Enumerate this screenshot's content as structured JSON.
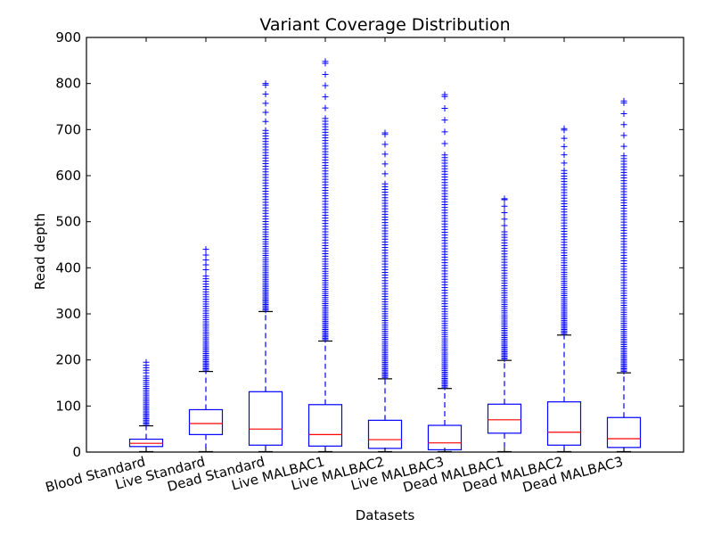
{
  "chart_data": {
    "type": "boxplot",
    "title": "Variant Coverage Distribution",
    "xlabel": "Datasets",
    "ylabel": "Read depth",
    "ylim": [
      0,
      900
    ],
    "yticks": [
      0,
      100,
      200,
      300,
      400,
      500,
      600,
      700,
      800,
      900
    ],
    "grid": false,
    "colors": {
      "box": "#0000ff",
      "median": "#ff0000",
      "outlier": "#0000ff",
      "axes": "#000000"
    },
    "categories": [
      "Blood Standard",
      "Live Standard",
      "Dead Standard",
      "Live MALBAC1",
      "Live MALBAC2",
      "Live MALBAC3",
      "Dead MALBAC1",
      "Dead MALBAC2",
      "Dead MALBAC3"
    ],
    "boxes": [
      {
        "name": "Blood Standard",
        "whisker_low": 1,
        "q1": 12,
        "median": 19,
        "q3": 28,
        "whisker_high": 57,
        "outlier_max": 195
      },
      {
        "name": "Live Standard",
        "whisker_low": 1,
        "q1": 38,
        "median": 62,
        "q3": 92,
        "whisker_high": 175,
        "outlier_max": 440
      },
      {
        "name": "Dead Standard",
        "whisker_low": 1,
        "q1": 15,
        "median": 50,
        "q3": 131,
        "whisker_high": 305,
        "outlier_max": 800
      },
      {
        "name": "Live MALBAC1",
        "whisker_low": 1,
        "q1": 13,
        "median": 38,
        "q3": 103,
        "whisker_high": 241,
        "outlier_max": 848
      },
      {
        "name": "Live MALBAC2",
        "whisker_low": 1,
        "q1": 8,
        "median": 27,
        "q3": 69,
        "whisker_high": 159,
        "outlier_max": 693
      },
      {
        "name": "Live MALBAC3",
        "whisker_low": 1,
        "q1": 5,
        "median": 20,
        "q3": 58,
        "whisker_high": 138,
        "outlier_max": 776
      },
      {
        "name": "Dead MALBAC1",
        "whisker_low": 1,
        "q1": 41,
        "median": 70,
        "q3": 104,
        "whisker_high": 199,
        "outlier_max": 550
      },
      {
        "name": "Dead MALBAC2",
        "whisker_low": 1,
        "q1": 15,
        "median": 43,
        "q3": 109,
        "whisker_high": 254,
        "outlier_max": 702
      },
      {
        "name": "Dead MALBAC3",
        "whisker_low": 1,
        "q1": 10,
        "median": 29,
        "q3": 75,
        "whisker_high": 172,
        "outlier_max": 762
      }
    ]
  }
}
